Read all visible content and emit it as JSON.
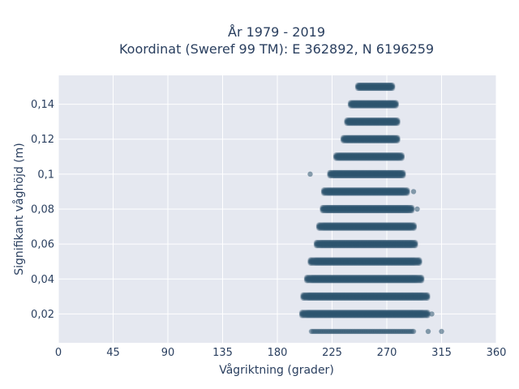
{
  "chart_data": {
    "type": "scatter",
    "title_line1": "År 1979 - 2019",
    "title_line2": "Koordinat (Sweref 99 TM): E 362892, N 6196259",
    "xlabel": "Vågriktning (grader)",
    "ylabel": "Signifikant våghöjd (m)",
    "xlim": [
      0,
      360
    ],
    "ylim": [
      0.0035,
      0.1565
    ],
    "x_tick_values": [
      0,
      45,
      90,
      135,
      180,
      225,
      270,
      315,
      360
    ],
    "x_tick_labels": [
      "0",
      "45",
      "90",
      "135",
      "180",
      "225",
      "270",
      "315",
      "360"
    ],
    "y_tick_values": [
      0.02,
      0.04,
      0.06,
      0.08,
      0.1,
      0.12,
      0.14
    ],
    "y_tick_labels": [
      "0,02",
      "0,04",
      "0,06",
      "0,08",
      "0,1",
      "0,12",
      "0,14"
    ],
    "grid": true,
    "marker_color": "#2f5670",
    "plot_bg": "#e5e8f0",
    "bands": [
      {
        "y": 0.01,
        "x_min": 208,
        "x_max": 292,
        "outliers": [
          304,
          315
        ]
      },
      {
        "y": 0.02,
        "x_min": 200,
        "x_max": 304,
        "outliers": [
          307
        ]
      },
      {
        "y": 0.03,
        "x_min": 201,
        "x_max": 304,
        "outliers": []
      },
      {
        "y": 0.04,
        "x_min": 204,
        "x_max": 299,
        "outliers": []
      },
      {
        "y": 0.05,
        "x_min": 207,
        "x_max": 297,
        "outliers": []
      },
      {
        "y": 0.06,
        "x_min": 212,
        "x_max": 294,
        "outliers": []
      },
      {
        "y": 0.07,
        "x_min": 214,
        "x_max": 293,
        "outliers": []
      },
      {
        "y": 0.08,
        "x_min": 217,
        "x_max": 291,
        "outliers": [
          295
        ]
      },
      {
        "y": 0.09,
        "x_min": 218,
        "x_max": 287,
        "outliers": [
          292
        ]
      },
      {
        "y": 0.1,
        "x_min": 223,
        "x_max": 284,
        "outliers": [
          207
        ]
      },
      {
        "y": 0.11,
        "x_min": 228,
        "x_max": 283,
        "outliers": []
      },
      {
        "y": 0.12,
        "x_min": 234,
        "x_max": 279,
        "outliers": []
      },
      {
        "y": 0.13,
        "x_min": 237,
        "x_max": 279,
        "outliers": []
      },
      {
        "y": 0.14,
        "x_min": 240,
        "x_max": 278,
        "outliers": []
      },
      {
        "y": 0.15,
        "x_min": 246,
        "x_max": 275,
        "outliers": []
      }
    ]
  }
}
